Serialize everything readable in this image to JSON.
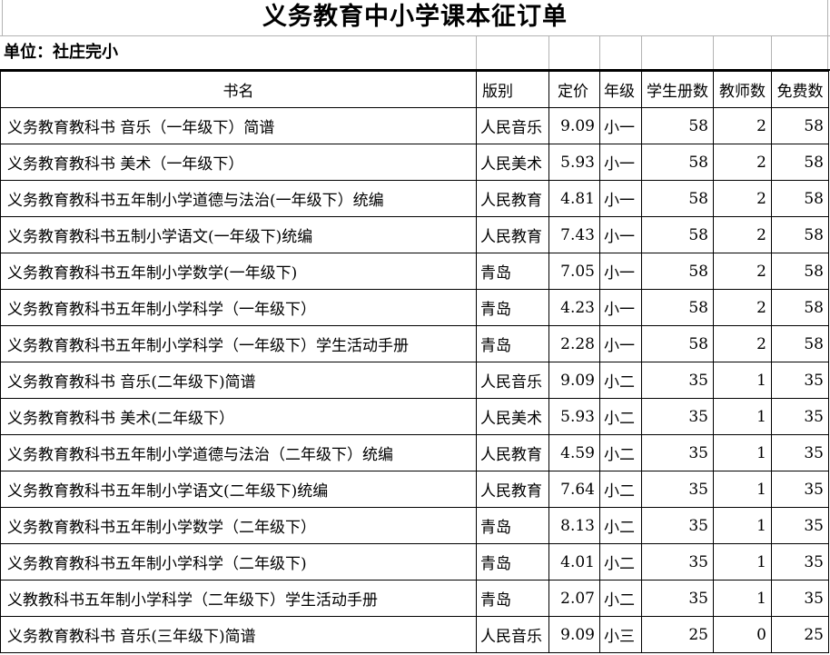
{
  "title": "义务教育中小学课本征订单",
  "unit": {
    "label": "单位：社庄完小"
  },
  "table": {
    "headers": [
      "书名",
      "版别",
      "定价",
      "年级",
      "学生册数",
      "教师数",
      "免费数"
    ],
    "rows": [
      {
        "book": "义务教育教科书 音乐（一年级下）简谱",
        "publisher": "人民音乐",
        "price": "9.09",
        "grade": "小一",
        "students": "58",
        "teachers": "2",
        "free": "58"
      },
      {
        "book": "义务教育教科书 美术（一年级下）",
        "publisher": "人民美术",
        "price": "5.93",
        "grade": "小一",
        "students": "58",
        "teachers": "2",
        "free": "58"
      },
      {
        "book": "义务教育教科书五年制小学道德与法治(一年级下）统编",
        "publisher": "人民教育",
        "price": "4.81",
        "grade": "小一",
        "students": "58",
        "teachers": "2",
        "free": "58"
      },
      {
        "book": "义务教育教科书五制小学语文(一年级下)统编",
        "publisher": "人民教育",
        "price": "7.43",
        "grade": "小一",
        "students": "58",
        "teachers": "2",
        "free": "58"
      },
      {
        "book": "义务教育教科书五年制小学数学(一年级下)",
        "publisher": "青岛",
        "price": "7.05",
        "grade": "小一",
        "students": "58",
        "teachers": "2",
        "free": "58"
      },
      {
        "book": "义务教育教科书五年制小学科学（一年级下）",
        "publisher": "青岛",
        "price": "4.23",
        "grade": "小一",
        "students": "58",
        "teachers": "2",
        "free": "58"
      },
      {
        "book": "义务教育教科书五年制小学科学（一年级下）学生活动手册",
        "publisher": "青岛",
        "price": "2.28",
        "grade": "小一",
        "students": "58",
        "teachers": "2",
        "free": "58"
      },
      {
        "book": "义务教育教科书 音乐(二年级下)简谱",
        "publisher": "人民音乐",
        "price": "9.09",
        "grade": "小二",
        "students": "35",
        "teachers": "1",
        "free": "35"
      },
      {
        "book": "义务教育教科书 美术(二年级下）",
        "publisher": "人民美术",
        "price": "5.93",
        "grade": "小二",
        "students": "35",
        "teachers": "1",
        "free": "35"
      },
      {
        "book": "义务教育教科书五年制小学道德与法治（二年级下）统编",
        "publisher": "人民教育",
        "price": "4.59",
        "grade": "小二",
        "students": "35",
        "teachers": "1",
        "free": "35"
      },
      {
        "book": "义务教育教科书五年制小学语文(二年级下)统编",
        "publisher": "人民教育",
        "price": "7.64",
        "grade": "小二",
        "students": "35",
        "teachers": "1",
        "free": "35"
      },
      {
        "book": "义务教育教科书五年制小学数学（二年级下）",
        "publisher": "青岛",
        "price": "8.13",
        "grade": "小二",
        "students": "35",
        "teachers": "1",
        "free": "35"
      },
      {
        "book": "义务教育教科书五年制小学科学（二年级下)",
        "publisher": "青岛",
        "price": "4.01",
        "grade": "小二",
        "students": "35",
        "teachers": "1",
        "free": "35"
      },
      {
        "book": "义教教科书五年制小学科学（二年级下）学生活动手册",
        "publisher": "青岛",
        "price": "2.07",
        "grade": "小二",
        "students": "35",
        "teachers": "1",
        "free": "35"
      },
      {
        "book": "义务教育教科书 音乐(三年级下)简谱",
        "publisher": "人民音乐",
        "price": "9.09",
        "grade": "小三",
        "students": "25",
        "teachers": "0",
        "free": "25"
      }
    ]
  }
}
